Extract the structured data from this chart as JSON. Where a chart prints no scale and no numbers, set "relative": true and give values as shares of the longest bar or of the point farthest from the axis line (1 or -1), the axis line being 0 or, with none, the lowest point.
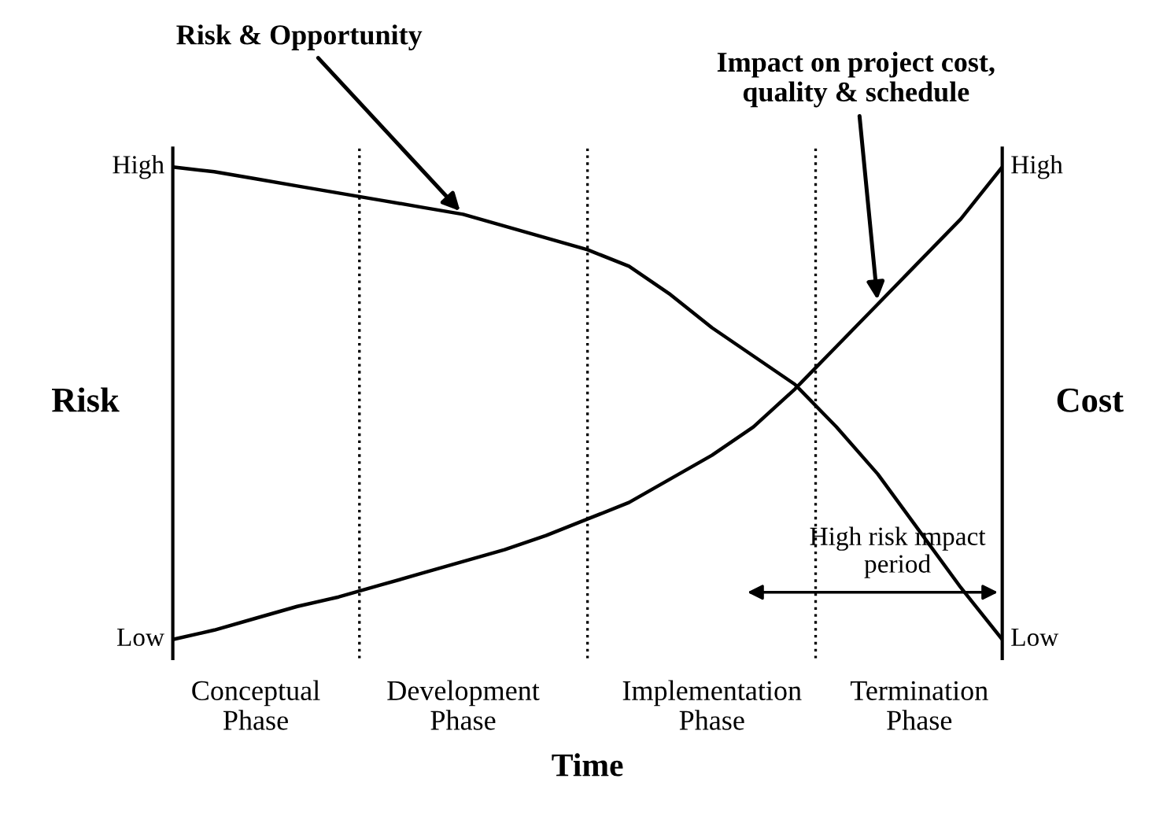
{
  "chart_data": {
    "type": "line",
    "relative": true,
    "xlabel": "Time",
    "ylabel": "Risk",
    "y2label": "Cost",
    "categories": [
      null,
      null,
      "Conceptual\nPhase",
      null,
      null,
      null,
      null,
      "Development\nPhase",
      null,
      null,
      null,
      null,
      null,
      "Implementation\nPhase",
      null,
      null,
      null,
      null,
      "Termination\nPhase",
      null,
      null
    ],
    "series": [
      {
        "color": "#000000",
        "values": [
          1,
          0.99,
          0.975,
          0.96,
          0.945,
          0.93,
          0.915,
          0.9,
          0.875,
          0.85,
          0.825,
          0.79,
          0.73,
          0.66,
          0.6,
          0.54,
          0.45,
          0.35,
          0.23,
          0.11,
          0
        ]
      },
      {
        "color": "#000000",
        "values": [
          0,
          0.02,
          0.045,
          0.07,
          0.09,
          0.115,
          0.14,
          0.165,
          0.19,
          0.22,
          0.255,
          0.29,
          0.34,
          0.39,
          0.45,
          0.53,
          0.62,
          0.71,
          0.8,
          0.89,
          1
        ]
      }
    ],
    "annotations": [
      "Risk & Opportunity",
      "Impact on project cost,\nquality & schedule",
      "High risk impact\nperiod",
      "High",
      "Low",
      "High",
      "Low"
    ],
    "line_style": "solid",
    "marker": "none",
    "grid": "x",
    "legend": false
  }
}
